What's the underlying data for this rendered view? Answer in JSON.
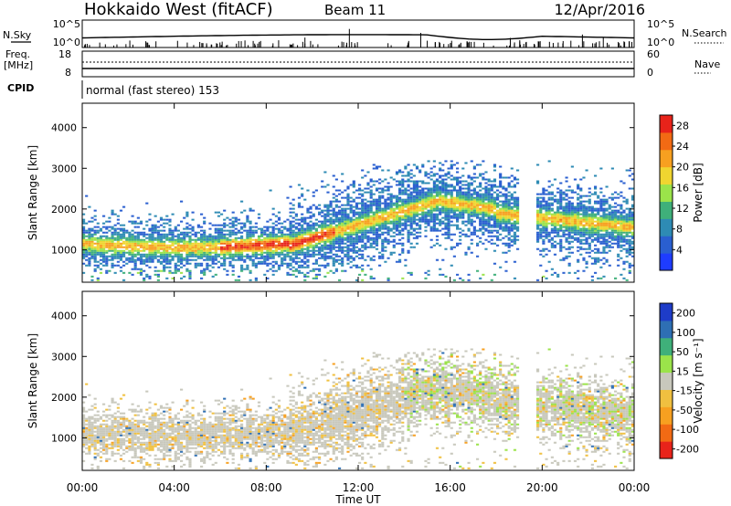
{
  "header": {
    "station": "Hokkaido West (fitACF)",
    "beam": "Beam 11",
    "date": "12/Apr/2016"
  },
  "status": {
    "nsky_label": "N.Sky",
    "nsky_top": "10^5",
    "nsky_bottom": "10^0",
    "nsearch_label": "N.Search",
    "nsearch_top": "10^5",
    "nsearch_bottom": "10^0",
    "freq_label": "Freq.",
    "freq_unit": "[MHz]",
    "freq_top": "18",
    "freq_bottom": "8",
    "nave_label": "Nave",
    "nave_top": "60",
    "nave_bottom": "0",
    "cpid_label": "CPID",
    "cpid_value": "normal (fast stereo) 153"
  },
  "chart_data": [
    {
      "type": "heatmap",
      "name": "power",
      "ylabel": "Slant Range [km]",
      "ylim": [
        200,
        4600
      ],
      "yticks": [
        "1000",
        "2000",
        "3000",
        "4000"
      ],
      "yticks_values": [
        1000,
        2000,
        3000,
        4000
      ],
      "colorbar_label": "Power [dB]",
      "colorbar_ticks": [
        "4",
        "8",
        "12",
        "16",
        "20",
        "24",
        "28"
      ],
      "colorbar_ticks_values": [
        4,
        8,
        12,
        16,
        20,
        24,
        28
      ],
      "colorbar_range": [
        0,
        30
      ],
      "colors": [
        "#1e3cff",
        "#2a5fd0",
        "#2e8bb4",
        "#3fb07a",
        "#9be34a",
        "#f0d530",
        "#f7a020",
        "#f26a14",
        "#e8231a"
      ]
    },
    {
      "type": "heatmap",
      "name": "velocity",
      "ylabel": "Slant Range [km]",
      "ylim": [
        200,
        4600
      ],
      "yticks": [
        "1000",
        "2000",
        "3000",
        "4000"
      ],
      "yticks_values": [
        1000,
        2000,
        3000,
        4000
      ],
      "xlabel": "Time UT",
      "xlim": [
        0,
        24
      ],
      "xticks": [
        "00:00",
        "04:00",
        "08:00",
        "12:00",
        "16:00",
        "20:00",
        "00:00"
      ],
      "xticks_values": [
        0,
        4,
        8,
        12,
        16,
        20,
        24
      ],
      "colorbar_label": "Velocity [m s⁻¹]",
      "colorbar_ticks": [
        "200",
        "100",
        "50",
        "15",
        "-15",
        "-50",
        "-100",
        "-200"
      ],
      "colorbar_ticks_values": [
        200,
        100,
        50,
        15,
        -15,
        -50,
        -100,
        -200
      ],
      "colorbar_range": [
        -250,
        250
      ],
      "colors": [
        "#e8231a",
        "#f26a14",
        "#f7a020",
        "#f0c040",
        "#c8c8bc",
        "#9be34a",
        "#3fb07a",
        "#2e6fb4",
        "#1e3cc8"
      ]
    }
  ]
}
